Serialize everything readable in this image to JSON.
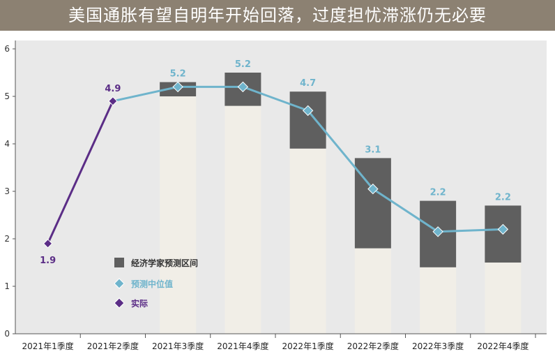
{
  "title": "美国通胀有望自明年开始回落，过度担忧滞涨仍无必要",
  "colors": {
    "banner": "#8c8172",
    "plot_bg": "#e9e9e9",
    "base_bar": "#f1eee7",
    "range_box": "#5f5f5f",
    "median": "#6fb4cc",
    "actual": "#5b2d86"
  },
  "chart_data": {
    "type": "bar",
    "title": "美国通胀有望自明年开始回落，过度担忧滞涨仍无必要",
    "categories": [
      "2021年1季度",
      "2021年2季度",
      "2021年3季度",
      "2021年4季度",
      "2022年1季度",
      "2022年2季度",
      "2022年3季度",
      "2022年4季度"
    ],
    "ylim": [
      0,
      6
    ],
    "yticks": [
      0,
      1,
      2,
      3,
      4,
      5,
      6
    ],
    "xlabel": "",
    "ylabel": "",
    "grid": false,
    "legend_position": "lower-left",
    "series": [
      {
        "name": "经济学家预测区间",
        "kind": "range",
        "low": [
          null,
          null,
          5.0,
          4.8,
          3.9,
          1.8,
          1.4,
          1.5
        ],
        "high": [
          null,
          null,
          5.3,
          5.5,
          5.1,
          3.7,
          2.8,
          2.7
        ]
      },
      {
        "name": "预测中位值",
        "kind": "line",
        "values": [
          null,
          4.9,
          5.2,
          5.2,
          4.7,
          3.05,
          2.15,
          2.2
        ]
      },
      {
        "name": "实际",
        "kind": "line",
        "values": [
          1.9,
          4.9,
          null,
          null,
          null,
          null,
          null,
          null
        ]
      }
    ],
    "data_labels": [
      "1.9",
      "4.9",
      "5.2",
      "5.2",
      "4.7",
      "3.1",
      "2.2",
      "2.2"
    ]
  }
}
